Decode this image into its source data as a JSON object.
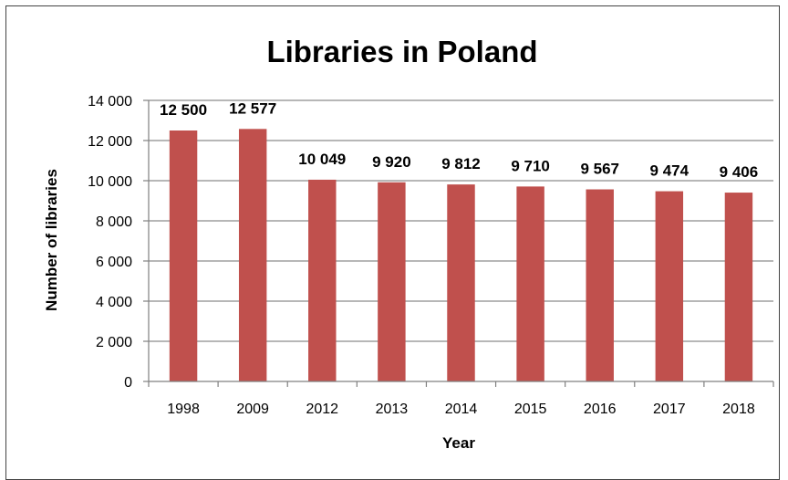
{
  "chart_data": {
    "type": "bar",
    "title": "Libraries in Poland",
    "xlabel": "Year",
    "ylabel": "Number of libraries",
    "categories": [
      "1998",
      "2009",
      "2012",
      "2013",
      "2014",
      "2015",
      "2016",
      "2017",
      "2018"
    ],
    "values": [
      12500,
      12577,
      10049,
      9920,
      9812,
      9710,
      9567,
      9474,
      9406
    ],
    "value_labels": [
      "12 500",
      "12 577",
      "10 049",
      "9 920",
      "9 812",
      "9 710",
      "9 567",
      "9 474",
      "9 406"
    ],
    "ylim": [
      0,
      14000
    ],
    "yticks": [
      0,
      2000,
      4000,
      6000,
      8000,
      10000,
      12000,
      14000
    ],
    "ytick_labels": [
      "0",
      "2 000",
      "4 000",
      "6 000",
      "8 000",
      "10 000",
      "12 000",
      "14 000"
    ],
    "grid": true,
    "legend": "none",
    "bar_color": "#C0504D",
    "grid_color": "#8C8C8C"
  }
}
